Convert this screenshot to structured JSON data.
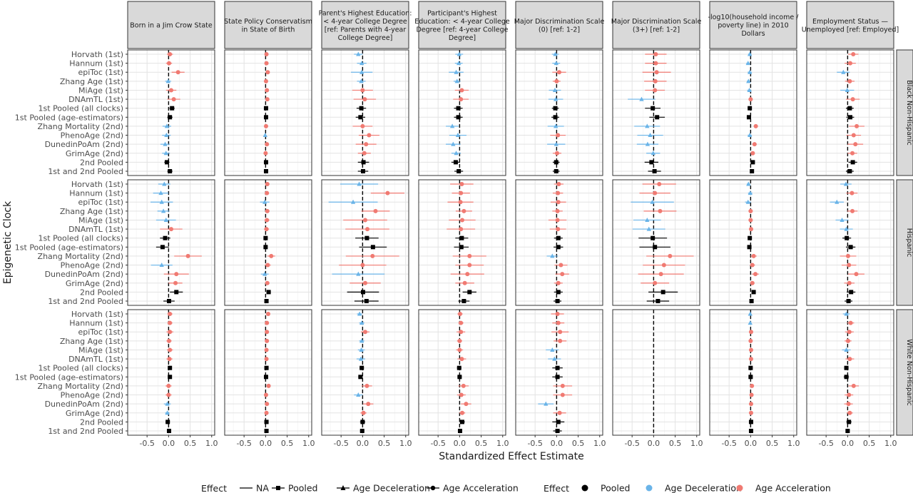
{
  "chart_data": {
    "type": "scatter",
    "subtype": "forest-plot-facet-grid",
    "xlabel": "Standardized Effect Estimate",
    "ylabel": "Epigenetic Clock",
    "xlim": [
      -0.95,
      1.07
    ],
    "x_ticks": [
      "-0.5",
      "0.0",
      "0.5",
      "1.0"
    ],
    "x_tick_values": [
      -0.5,
      0,
      0.5,
      1.0
    ],
    "reference_line_x": 0,
    "grid": true,
    "columns": [
      "Born in a Jim Crow State",
      "State Policy Conservatism in State of Birth",
      "Parent's Highest Education: < 4-year College Degree [ref: Parents with 4-year College Degree]",
      "Participant's Highest Education: < 4-year College Degree [ref: 4-year College Degree]",
      "Major Discrimination Scale (0) [ref: 1-2]",
      "Major Discrimination Scale (3+) [ref: 1-2]",
      "-log10(household income / poverty line) in 2010 Dollars",
      "Employment Status — Unemployed [ref: Employed]"
    ],
    "rows": [
      "Black Non-Hispanic",
      "Hispanic",
      "White Non-Hispanic"
    ],
    "clocks": [
      "Horvath (1st)",
      "Hannum (1st)",
      "epiToc (1st)",
      "Zhang Age (1st)",
      "MiAge (1st)",
      "DNAmTL (1st)",
      "1st Pooled (all clocks)",
      "1st Pooled (age-estimators)",
      "Zhang Mortality (2nd)",
      "PhenoAge (2nd)",
      "DunedinPoAm (2nd)",
      "GrimAge (2nd)",
      "2nd Pooled",
      "1st and 2nd Pooled"
    ],
    "effect_colors": {
      "Pooled": "#000000",
      "Age Deceleration": "#6ab4e8",
      "Age Acceleration": "#f07a72"
    },
    "effect_shapes": {
      "NA": "line",
      "Pooled": "square",
      "Age Deceleration": "triangle",
      "Age Acceleration": "circle"
    },
    "panels": [
      {
        "row": 0,
        "col": 0,
        "estimates": [
          0.03,
          0.01,
          0.22,
          -0.01,
          0.06,
          0.12,
          0.08,
          0.03,
          -0.04,
          -0.05,
          -0.08,
          -0.06,
          -0.04,
          0.03
        ],
        "half_widths": [
          0.07,
          0.07,
          0.15,
          0.07,
          0.12,
          0.15,
          0.06,
          0.06,
          0.1,
          0.1,
          0.11,
          0.09,
          0.06,
          0.06
        ]
      },
      {
        "row": 0,
        "col": 1,
        "estimates": [
          0.02,
          0.02,
          0.05,
          0.01,
          0.03,
          0.04,
          0.01,
          0.01,
          0.01,
          -0.01,
          0.03,
          0.0,
          0.01,
          0.01
        ],
        "half_widths": [
          0.03,
          0.03,
          0.04,
          0.03,
          0.03,
          0.04,
          0.02,
          0.02,
          0.03,
          0.03,
          0.03,
          0.03,
          0.02,
          0.02
        ]
      },
      {
        "row": 0,
        "col": 2,
        "estimates": [
          -0.1,
          -0.02,
          -0.02,
          -0.03,
          0.0,
          0.05,
          -0.03,
          -0.05,
          0.0,
          0.15,
          0.08,
          0.04,
          0.02,
          0.01
        ],
        "half_widths": [
          0.1,
          0.11,
          0.25,
          0.1,
          0.24,
          0.26,
          0.11,
          0.11,
          0.23,
          0.24,
          0.24,
          0.15,
          0.13,
          0.12
        ]
      },
      {
        "row": 0,
        "col": 3,
        "estimates": [
          -0.01,
          -0.02,
          -0.08,
          -0.06,
          0.05,
          0.03,
          -0.03,
          -0.03,
          -0.17,
          -0.04,
          -0.15,
          -0.08,
          -0.09,
          -0.02
        ],
        "half_widths": [
          0.09,
          0.09,
          0.17,
          0.08,
          0.16,
          0.18,
          0.1,
          0.1,
          0.15,
          0.2,
          0.17,
          0.11,
          0.1,
          0.1
        ]
      },
      {
        "row": 0,
        "col": 4,
        "estimates": [
          -0.03,
          -0.01,
          0.06,
          0.0,
          -0.04,
          -0.02,
          -0.03,
          -0.03,
          -0.02,
          0.03,
          -0.01,
          0.01,
          -0.01,
          -0.01
        ],
        "half_widths": [
          0.08,
          0.09,
          0.16,
          0.09,
          0.14,
          0.17,
          0.08,
          0.09,
          0.19,
          0.18,
          0.21,
          0.1,
          0.08,
          0.08
        ]
      },
      {
        "row": 0,
        "col": 5,
        "estimates": [
          0.05,
          0.05,
          0.07,
          0.04,
          0.03,
          -0.28,
          -0.02,
          0.08,
          -0.15,
          -0.08,
          -0.14,
          -0.01,
          -0.05,
          0.02
        ],
        "half_widths": [
          0.25,
          0.25,
          0.33,
          0.26,
          0.23,
          0.32,
          0.18,
          0.18,
          0.3,
          0.3,
          0.25,
          0.16,
          0.16,
          0.15
        ]
      },
      {
        "row": 0,
        "col": 6,
        "estimates": [
          -0.02,
          -0.06,
          -0.02,
          -0.05,
          -0.03,
          0.0,
          -0.02,
          -0.04,
          0.12,
          -0.02,
          0.09,
          0.05,
          0.05,
          0.03
        ],
        "half_widths": [
          0.04,
          0.04,
          0.05,
          0.04,
          0.05,
          0.05,
          0.03,
          0.03,
          0.05,
          0.05,
          0.05,
          0.04,
          0.03,
          0.03
        ]
      },
      {
        "row": 0,
        "col": 7,
        "estimates": [
          0.13,
          0.06,
          -0.1,
          0.05,
          -0.01,
          0.12,
          0.05,
          0.06,
          0.21,
          0.14,
          0.18,
          0.11,
          0.12,
          0.05
        ],
        "half_widths": [
          0.12,
          0.13,
          0.15,
          0.11,
          0.16,
          0.16,
          0.09,
          0.09,
          0.18,
          0.17,
          0.18,
          0.11,
          0.1,
          0.09
        ]
      },
      {
        "row": 1,
        "col": 0,
        "estimates": [
          -0.1,
          -0.18,
          -0.16,
          -0.12,
          -0.06,
          0.06,
          -0.08,
          -0.14,
          0.45,
          -0.16,
          0.18,
          0.16,
          0.18,
          0.01
        ],
        "half_widths": [
          0.14,
          0.18,
          0.26,
          0.14,
          0.23,
          0.26,
          0.12,
          0.15,
          0.32,
          0.25,
          0.29,
          0.16,
          0.15,
          0.13
        ]
      },
      {
        "row": 1,
        "col": 1,
        "estimates": [
          0.04,
          0.03,
          -0.02,
          0.04,
          0.03,
          0.02,
          0.0,
          0.0,
          0.13,
          0.05,
          -0.02,
          0.04,
          0.07,
          0.02
        ],
        "half_widths": [
          0.05,
          0.05,
          0.11,
          0.05,
          0.06,
          0.06,
          0.04,
          0.04,
          0.09,
          0.07,
          0.09,
          0.05,
          0.05,
          0.04
        ]
      },
      {
        "row": 1,
        "col": 2,
        "estimates": [
          -0.08,
          0.58,
          -0.22,
          0.3,
          0.06,
          0.11,
          0.1,
          0.24,
          0.23,
          0.0,
          -0.1,
          0.06,
          0.01,
          0.09
        ],
        "half_widths": [
          0.44,
          0.39,
          0.57,
          0.33,
          0.51,
          0.51,
          0.27,
          0.32,
          0.62,
          0.55,
          0.61,
          0.36,
          0.37,
          0.28
        ]
      },
      {
        "row": 1,
        "col": 3,
        "estimates": [
          0.05,
          0.03,
          0.02,
          0.1,
          0.06,
          0.03,
          0.05,
          0.04,
          0.23,
          0.23,
          0.18,
          0.12,
          0.23,
          0.1
        ],
        "half_widths": [
          0.27,
          0.21,
          0.3,
          0.19,
          0.31,
          0.33,
          0.15,
          0.17,
          0.39,
          0.33,
          0.39,
          0.22,
          0.16,
          0.13
        ]
      },
      {
        "row": 1,
        "col": 4,
        "estimates": [
          0.05,
          0.03,
          0.04,
          0.02,
          0.02,
          0.03,
          0.04,
          0.04,
          -0.1,
          0.1,
          0.13,
          0.04,
          0.04,
          0.02
        ],
        "half_widths": [
          0.11,
          0.12,
          0.18,
          0.12,
          0.21,
          0.19,
          0.1,
          0.11,
          0.13,
          0.15,
          0.16,
          0.1,
          0.1,
          0.09
        ]
      },
      {
        "row": 1,
        "col": 5,
        "estimates": [
          0.13,
          0.03,
          -0.03,
          0.15,
          -0.15,
          -0.11,
          -0.02,
          0.03,
          0.38,
          0.24,
          0.17,
          0.03,
          0.22,
          0.1
        ],
        "half_widths": [
          0.39,
          0.36,
          0.5,
          0.38,
          0.32,
          0.38,
          0.33,
          0.36,
          0.55,
          0.49,
          0.53,
          0.33,
          0.34,
          0.26
        ]
      },
      {
        "row": 1,
        "col": 6,
        "estimates": [
          -0.05,
          -0.01,
          -0.06,
          0.0,
          0.0,
          0.01,
          -0.02,
          -0.03,
          0.07,
          0.04,
          0.11,
          0.04,
          0.07,
          0.02
        ],
        "half_widths": [
          0.04,
          0.05,
          0.07,
          0.05,
          0.05,
          0.05,
          0.04,
          0.04,
          0.07,
          0.06,
          0.08,
          0.05,
          0.04,
          0.04
        ]
      },
      {
        "row": 1,
        "col": 7,
        "estimates": [
          -0.04,
          0.1,
          -0.25,
          0.11,
          -0.13,
          -0.03,
          -0.02,
          0.07,
          0.01,
          0.03,
          0.2,
          0.04,
          0.08,
          0.02
        ],
        "half_widths": [
          0.13,
          0.13,
          0.16,
          0.12,
          0.15,
          0.15,
          0.1,
          0.11,
          0.19,
          0.17,
          0.19,
          0.12,
          0.1,
          0.09
        ]
      },
      {
        "row": 2,
        "col": 0,
        "estimates": [
          0.03,
          0.03,
          0.03,
          0.01,
          0.03,
          0.02,
          0.03,
          0.03,
          0.0,
          0.0,
          -0.03,
          -0.03,
          -0.02,
          0.01
        ],
        "half_widths": [
          0.06,
          0.06,
          0.08,
          0.06,
          0.07,
          0.07,
          0.04,
          0.04,
          0.07,
          0.07,
          0.08,
          0.05,
          0.05,
          0.04
        ]
      },
      {
        "row": 2,
        "col": 1,
        "estimates": [
          0.06,
          0.03,
          0.03,
          0.03,
          0.02,
          0.02,
          0.02,
          0.01,
          0.07,
          0.01,
          0.03,
          0.02,
          0.02,
          0.02
        ],
        "half_widths": [
          0.03,
          0.03,
          0.03,
          0.03,
          0.03,
          0.03,
          0.02,
          0.02,
          0.03,
          0.03,
          0.03,
          0.03,
          0.02,
          0.02
        ]
      },
      {
        "row": 2,
        "col": 2,
        "estimates": [
          -0.07,
          -0.02,
          0.06,
          -0.02,
          -0.03,
          -0.04,
          -0.02,
          -0.05,
          0.1,
          -0.1,
          0.13,
          0.02,
          0.0,
          -0.01
        ],
        "half_widths": [
          0.06,
          0.06,
          0.1,
          0.06,
          0.08,
          0.1,
          0.05,
          0.05,
          0.12,
          0.1,
          0.12,
          0.07,
          0.06,
          0.05
        ]
      },
      {
        "row": 2,
        "col": 3,
        "estimates": [
          0.01,
          0.03,
          0.03,
          0.0,
          0.0,
          0.05,
          -0.01,
          0.0,
          0.09,
          0.04,
          0.15,
          0.06,
          0.06,
          0.01
        ],
        "half_widths": [
          0.06,
          0.06,
          0.1,
          0.06,
          0.08,
          0.1,
          0.05,
          0.05,
          0.12,
          0.1,
          0.12,
          0.07,
          0.06,
          0.05
        ]
      },
      {
        "row": 2,
        "col": 4,
        "estimates": [
          0.02,
          0.04,
          0.08,
          0.08,
          -0.1,
          -0.05,
          0.02,
          0.02,
          0.14,
          0.14,
          -0.25,
          0.07,
          0.04,
          0.02
        ],
        "half_widths": [
          0.15,
          0.14,
          0.2,
          0.15,
          0.15,
          0.15,
          0.12,
          0.12,
          0.22,
          0.22,
          0.18,
          0.15,
          0.14,
          0.1
        ]
      },
      {
        "row": 2,
        "col": 6,
        "estimates": [
          -0.01,
          -0.01,
          0.01,
          0.0,
          0.01,
          0.01,
          0.0,
          0.0,
          0.03,
          0.02,
          0.01,
          0.01,
          0.01,
          0.01
        ],
        "half_widths": [
          0.02,
          0.02,
          0.02,
          0.02,
          0.02,
          0.02,
          0.01,
          0.01,
          0.02,
          0.02,
          0.02,
          0.02,
          0.01,
          0.01
        ]
      },
      {
        "row": 2,
        "col": 7,
        "estimates": [
          -0.03,
          0.07,
          0.04,
          0.01,
          -0.03,
          0.05,
          -0.03,
          -0.03,
          0.14,
          0.03,
          0.02,
          0.05,
          0.03,
          0.0
        ],
        "half_widths": [
          0.08,
          0.08,
          0.1,
          0.08,
          0.1,
          0.1,
          0.05,
          0.06,
          0.12,
          0.1,
          0.1,
          0.07,
          0.06,
          0.05
        ]
      }
    ],
    "legend_line": {
      "title": "Effect",
      "items": [
        {
          "label": "NA",
          "shape": "line"
        },
        {
          "label": "Pooled",
          "shape": "square"
        },
        {
          "label": "Age Deceleration",
          "shape": "triangle"
        },
        {
          "label": "Age Acceleration",
          "shape": "circle"
        }
      ]
    },
    "legend_color": {
      "title": "Effect",
      "items": [
        {
          "label": "Pooled",
          "color": "#000000"
        },
        {
          "label": "Age Deceleration",
          "color": "#6ab4e8"
        },
        {
          "label": "Age Acceleration",
          "color": "#f07a72"
        }
      ]
    }
  }
}
